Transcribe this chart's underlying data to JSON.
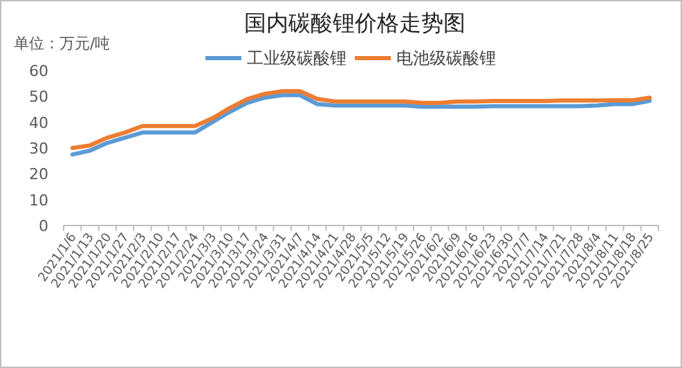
{
  "chart_data": {
    "type": "line",
    "title": "国内碳酸锂价格走势图",
    "ylabel": "单位：万元/吨",
    "legend": "top",
    "grid": false,
    "marker": "none",
    "line_style": "solid",
    "categories": [
      "2021/1/6",
      "2021/1/13",
      "2021/1/20",
      "2021/1/27",
      "2021/2/3",
      "2021/2/10",
      "2021/2/17",
      "2021/2/24",
      "2021/3/3",
      "2021/3/10",
      "2021/3/17",
      "2021/3/24",
      "2021/3/31",
      "2021/4/7",
      "2021/4/14",
      "2021/4/21",
      "2021/4/28",
      "2021/5/5",
      "2021/5/12",
      "2021/5/19",
      "2021/5/26",
      "2021/6/2",
      "2021/6/9",
      "2021/6/16",
      "2021/6/23",
      "2021/6/30",
      "2021/7/7",
      "2021/7/14",
      "2021/7/21",
      "2021/7/28",
      "2021/8/4",
      "2021/8/11",
      "2021/8/18",
      "2021/8/25"
    ],
    "series": [
      {
        "name": "工业级碳酸锂",
        "color": "#5b9bd5",
        "values": [
          27.5,
          29,
          32,
          34,
          36,
          36,
          36,
          36,
          40,
          44,
          47.5,
          49.5,
          50.5,
          50.5,
          47,
          46.5,
          46.5,
          46.5,
          46.5,
          46.5,
          46,
          46,
          46,
          46,
          46.2,
          46.2,
          46.2,
          46.2,
          46.2,
          46.2,
          46.5,
          47,
          47,
          48.3
        ]
      },
      {
        "name": "电池级碳酸锂",
        "color": "#ed7d31",
        "values": [
          30,
          31,
          34,
          36,
          38.5,
          38.5,
          38.5,
          38.5,
          41.5,
          45.5,
          49,
          51,
          52,
          52,
          49,
          48,
          48,
          48,
          48,
          48,
          47.5,
          47.5,
          48,
          48,
          48.2,
          48.2,
          48.2,
          48.2,
          48.4,
          48.4,
          48.4,
          48.5,
          48.5,
          49.5
        ]
      }
    ],
    "ylim": [
      0,
      60
    ],
    "yticks": [
      0,
      10,
      20,
      30,
      40,
      50,
      60
    ]
  }
}
